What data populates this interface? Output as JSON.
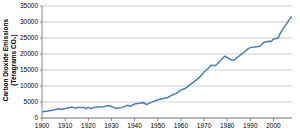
{
  "chart_data": {
    "type": "line",
    "ylabel": [
      "Carbon Dioxide Emissions",
      "(Teragrams CO₂)"
    ],
    "x": [
      1900,
      1902,
      1905,
      1907,
      1908,
      1910,
      1913,
      1914,
      1916,
      1918,
      1919,
      1920,
      1921,
      1923,
      1925,
      1927,
      1929,
      1930,
      1932,
      1935,
      1937,
      1938,
      1940,
      1942,
      1944,
      1945,
      1946,
      1948,
      1950,
      1952,
      1954,
      1956,
      1958,
      1960,
      1962,
      1964,
      1966,
      1968,
      1970,
      1972,
      1973,
      1974,
      1975,
      1977,
      1979,
      1980,
      1982,
      1983,
      1985,
      1987,
      1989,
      1990,
      1992,
      1994,
      1996,
      1998,
      1999,
      2000,
      2002,
      2003,
      2004,
      2005,
      2006,
      2007,
      2008
    ],
    "values": [
      1950,
      2100,
      2500,
      2900,
      2700,
      2950,
      3400,
      3100,
      3300,
      3300,
      2900,
      3300,
      2900,
      3400,
      3400,
      3600,
      3900,
      3600,
      2950,
      3400,
      3950,
      3650,
      4350,
      4600,
      4800,
      4200,
      4500,
      5100,
      5700,
      6000,
      6300,
      7100,
      7700,
      8700,
      9300,
      10400,
      11500,
      12700,
      14400,
      15600,
      16500,
      16400,
      16400,
      17900,
      19300,
      18900,
      18100,
      18100,
      19300,
      20400,
      21600,
      22000,
      22200,
      22400,
      23700,
      24000,
      23900,
      24600,
      25000,
      26500,
      27800,
      28800,
      29800,
      30900,
      31800
    ],
    "color": "#4a7ebb",
    "xlim": [
      1900,
      2008
    ],
    "xticks": [
      1900,
      1910,
      1920,
      1930,
      1940,
      1950,
      1960,
      1970,
      1980,
      1990,
      2000
    ],
    "ylim": [
      0,
      35000
    ],
    "yticks": [
      0,
      5000,
      10000,
      15000,
      20000,
      25000,
      30000,
      35000
    ],
    "grid": true
  }
}
